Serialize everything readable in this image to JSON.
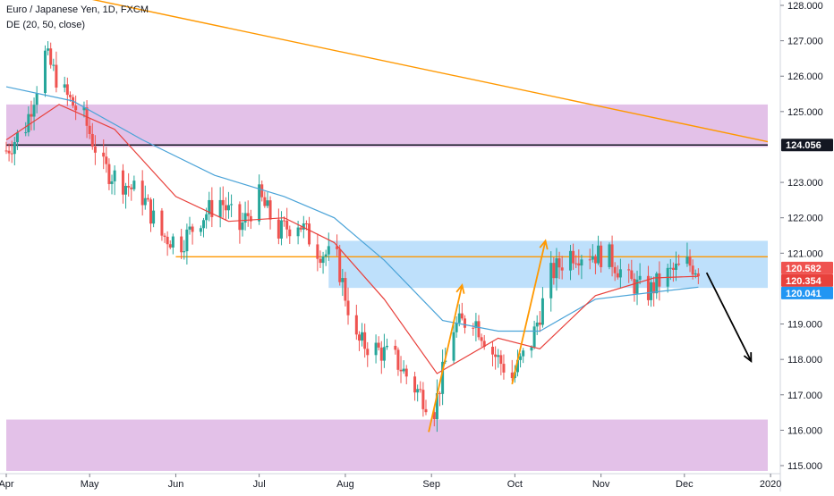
{
  "legend": {
    "symbol_line": "Euro / Japanese Yen, 1D, FXCM",
    "indicator_line": "DE (20, 50, close)"
  },
  "colors": {
    "up": "#26a69a",
    "down": "#ef5350",
    "ma_fast": "#e8413c",
    "ma_slow": "#4aa3d8",
    "zone_purple": "#e1bee7",
    "zone_blue": "#bbdefb",
    "trend": "#ff9800",
    "arrow_down": "#000000"
  },
  "chart_data": {
    "type": "candlestick",
    "symbol": "EURJPY",
    "timeframe": "1D",
    "yaxis": {
      "ylim": [
        114.85,
        128.15
      ],
      "ticks": [
        {
          "value": 128,
          "label": "128.000"
        },
        {
          "value": 127,
          "label": "127.000"
        },
        {
          "value": 126,
          "label": "126.000"
        },
        {
          "value": 125,
          "label": "125.000"
        },
        {
          "value": 123,
          "label": "123.000"
        },
        {
          "value": 122,
          "label": "122.000"
        },
        {
          "value": 121,
          "label": "121.000"
        },
        {
          "value": 119,
          "label": "119.000"
        },
        {
          "value": 118,
          "label": "118.000"
        },
        {
          "value": 117,
          "label": "117.000"
        },
        {
          "value": 116,
          "label": "116.000"
        },
        {
          "value": 115,
          "label": "115.000"
        }
      ]
    },
    "xaxis": {
      "start": "2019-04-01",
      "end": "2019-12-31",
      "ticks": [
        {
          "date": "2019-04-01",
          "label": "Apr"
        },
        {
          "date": "2019-05-01",
          "label": "May"
        },
        {
          "date": "2019-06-01",
          "label": "Jun"
        },
        {
          "date": "2019-07-01",
          "label": "Jul"
        },
        {
          "date": "2019-08-01",
          "label": "Aug"
        },
        {
          "date": "2019-09-01",
          "label": "Sep"
        },
        {
          "date": "2019-10-01",
          "label": "Oct"
        },
        {
          "date": "2019-11-01",
          "label": "Nov"
        },
        {
          "date": "2019-12-01",
          "label": "Dec"
        },
        {
          "date": "2020-01-01",
          "label": "2020"
        }
      ]
    },
    "price_badges": [
      {
        "value": 124.056,
        "label": "124.056",
        "color": "#131722"
      },
      {
        "value": 120.582,
        "label": "120.582",
        "color": "#ef5350"
      },
      {
        "value": 120.354,
        "label": "120.354",
        "color": "#e8413c"
      },
      {
        "value": 120.041,
        "label": "120.041",
        "color": "#2196f3"
      }
    ],
    "zones": [
      {
        "name": "upper-resistance-zone",
        "date_from": "2019-04-01",
        "date_to": "2019-12-31",
        "y_from": 124.0,
        "y_to": 125.2,
        "color": "#e1bee7"
      },
      {
        "name": "middle-resistance-zone",
        "date_from": "2019-07-26",
        "date_to": "2019-12-31",
        "y_from": 120.02,
        "y_to": 121.35,
        "color": "#bbdefb"
      },
      {
        "name": "lower-support-zone",
        "date_from": "2019-04-01",
        "date_to": "2019-12-31",
        "y_from": 114.85,
        "y_to": 116.3,
        "color": "#e1bee7"
      }
    ],
    "lines": [
      {
        "name": "horizontal-line-124",
        "from": [
          "2019-04-01",
          124.056
        ],
        "to": [
          "2019-12-31",
          124.056
        ],
        "color": "#131722"
      },
      {
        "name": "horizontal-level-120-9",
        "from": [
          "2019-06-01",
          120.9
        ],
        "to": [
          "2019-12-31",
          120.9
        ],
        "color": "#ff9800"
      },
      {
        "name": "descending-trendline",
        "from": [
          "2019-04-30",
          128.2
        ],
        "to": [
          "2019-12-31",
          124.15
        ],
        "color": "#ff9800"
      }
    ],
    "arrows": [
      {
        "name": "up-arrow-september",
        "from": [
          "2019-08-31",
          115.95
        ],
        "to": [
          "2019-09-12",
          120.1
        ],
        "color": "#ff9800"
      },
      {
        "name": "up-arrow-october",
        "from": [
          "2019-09-30",
          117.3
        ],
        "to": [
          "2019-10-12",
          121.35
        ],
        "color": "#ff9800"
      },
      {
        "name": "down-arrow-projection",
        "from": [
          "2019-12-09",
          120.45
        ],
        "to": [
          "2019-12-25",
          117.95
        ],
        "color": "#000000"
      }
    ],
    "ohlc_anchors": [
      [
        "2019-04-01",
        123.9
      ],
      [
        "2019-04-08",
        124.6
      ],
      [
        "2019-04-15",
        126.6
      ],
      [
        "2019-04-22",
        125.5
      ],
      [
        "2019-04-29",
        124.8
      ],
      [
        "2019-05-06",
        123.4
      ],
      [
        "2019-05-13",
        123.0
      ],
      [
        "2019-05-20",
        122.6
      ],
      [
        "2019-05-27",
        121.5
      ],
      [
        "2019-06-03",
        121.3
      ],
      [
        "2019-06-10",
        122.0
      ],
      [
        "2019-06-17",
        122.5
      ],
      [
        "2019-06-24",
        121.7
      ],
      [
        "2019-07-01",
        122.6
      ],
      [
        "2019-07-08",
        121.6
      ],
      [
        "2019-07-15",
        121.9
      ],
      [
        "2019-07-22",
        121.1
      ],
      [
        "2019-07-29",
        120.8
      ],
      [
        "2019-08-05",
        118.5
      ],
      [
        "2019-08-12",
        118.3
      ],
      [
        "2019-08-19",
        118.0
      ],
      [
        "2019-08-26",
        117.2
      ],
      [
        "2019-09-02",
        116.6
      ],
      [
        "2019-09-09",
        118.9
      ],
      [
        "2019-09-16",
        119.2
      ],
      [
        "2019-09-23",
        118.2
      ],
      [
        "2019-09-30",
        117.5
      ],
      [
        "2019-10-07",
        118.5
      ],
      [
        "2019-10-14",
        120.4
      ],
      [
        "2019-10-21",
        121.0
      ],
      [
        "2019-10-28",
        121.0
      ],
      [
        "2019-11-04",
        120.9
      ],
      [
        "2019-11-11",
        120.2
      ],
      [
        "2019-11-18",
        119.9
      ],
      [
        "2019-11-25",
        120.4
      ],
      [
        "2019-12-02",
        120.7
      ],
      [
        "2019-12-06",
        120.58
      ]
    ],
    "ma_fast_anchors": [
      [
        "2019-04-01",
        124.2
      ],
      [
        "2019-04-20",
        125.2
      ],
      [
        "2019-05-10",
        124.5
      ],
      [
        "2019-06-01",
        122.6
      ],
      [
        "2019-06-20",
        121.9
      ],
      [
        "2019-07-10",
        122.0
      ],
      [
        "2019-07-28",
        121.3
      ],
      [
        "2019-08-15",
        119.7
      ],
      [
        "2019-09-03",
        117.6
      ],
      [
        "2019-09-25",
        118.6
      ],
      [
        "2019-10-10",
        118.3
      ],
      [
        "2019-10-30",
        119.8
      ],
      [
        "2019-11-20",
        120.3
      ],
      [
        "2019-12-06",
        120.35
      ]
    ],
    "ma_slow_anchors": [
      [
        "2019-04-01",
        125.7
      ],
      [
        "2019-04-25",
        125.3
      ],
      [
        "2019-05-20",
        124.2
      ],
      [
        "2019-06-15",
        123.2
      ],
      [
        "2019-07-10",
        122.6
      ],
      [
        "2019-07-28",
        122.0
      ],
      [
        "2019-08-15",
        120.8
      ],
      [
        "2019-09-05",
        119.1
      ],
      [
        "2019-09-25",
        118.8
      ],
      [
        "2019-10-10",
        118.8
      ],
      [
        "2019-10-30",
        119.7
      ],
      [
        "2019-11-20",
        119.9
      ],
      [
        "2019-12-06",
        120.04
      ]
    ]
  }
}
